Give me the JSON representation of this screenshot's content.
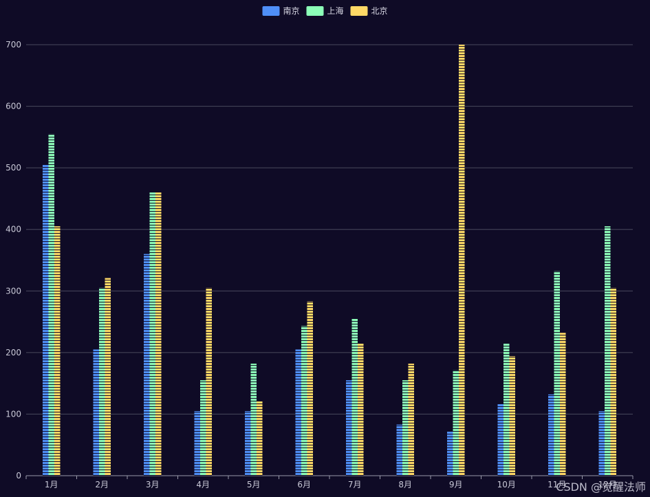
{
  "chart_data": {
    "type": "bar",
    "categories": [
      "1月",
      "2月",
      "3月",
      "4月",
      "5月",
      "6月",
      "7月",
      "8月",
      "9月",
      "10月",
      "11月",
      "12月"
    ],
    "series": [
      {
        "name": "南京",
        "color": "#4f8ff7",
        "values": [
          505,
          205,
          360,
          105,
          105,
          205,
          155,
          83,
          72,
          117,
          132,
          105
        ]
      },
      {
        "name": "上海",
        "color": "#8cffb8",
        "values": [
          555,
          305,
          460,
          155,
          182,
          243,
          255,
          155,
          171,
          215,
          332,
          405
        ]
      },
      {
        "name": "北京",
        "color": "#ffd966",
        "values": [
          405,
          321,
          460,
          305,
          121,
          283,
          215,
          182,
          700,
          194,
          232,
          305
        ]
      }
    ],
    "ylim": [
      0,
      700
    ],
    "yticks": [
      0,
      100,
      200,
      300,
      400,
      500,
      600,
      700
    ],
    "grid": true,
    "legend_position": "top-center",
    "style": "striped"
  },
  "watermark": "CSDN @觉醒法师"
}
